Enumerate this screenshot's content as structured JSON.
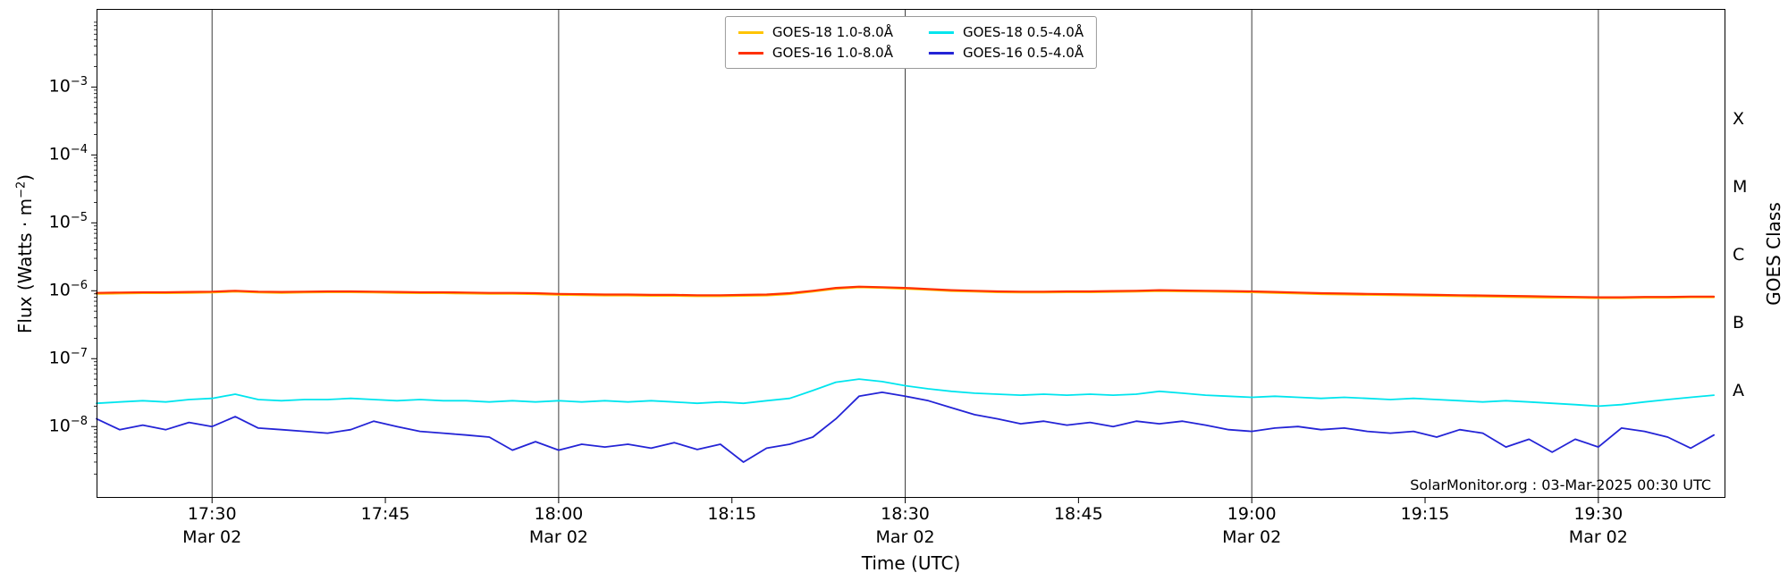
{
  "chart_data": {
    "type": "line",
    "title": "",
    "xlabel": "Time (UTC)",
    "ylabel": "Flux (Watts · m⁻²)",
    "ylabel_parts": {
      "pre": "Flux (Watts · m",
      "sup": "−2",
      "post": ")"
    },
    "ylabel_right": "GOES Class",
    "annotation": "SolarMonitor.org : 03-Mar-2025 00:30 UTC",
    "x_axis_date": "Mar 02",
    "scale": "log",
    "grid": "vertical lines at half-hour marks only",
    "legend_position": "upper center, 2 columns",
    "xlim_minutes": [
      1040,
      1181
    ],
    "ylim_log10": [
      -9.05,
      -1.85
    ],
    "x_start_minutes": 1040,
    "x_step_minutes": 2,
    "colors": {
      "grid": "#3c3c3c",
      "frame": "#000000",
      "background": "#ffffff"
    },
    "x_ticks": [
      {
        "minutes": 1050,
        "label": "17:30",
        "date": "Mar 02",
        "grid": true
      },
      {
        "minutes": 1065,
        "label": "17:45",
        "date": "",
        "grid": false
      },
      {
        "minutes": 1080,
        "label": "18:00",
        "date": "Mar 02",
        "grid": true
      },
      {
        "minutes": 1095,
        "label": "18:15",
        "date": "",
        "grid": false
      },
      {
        "minutes": 1110,
        "label": "18:30",
        "date": "Mar 02",
        "grid": true
      },
      {
        "minutes": 1125,
        "label": "18:45",
        "date": "",
        "grid": false
      },
      {
        "minutes": 1140,
        "label": "19:00",
        "date": "Mar 02",
        "grid": true
      },
      {
        "minutes": 1155,
        "label": "19:15",
        "date": "",
        "grid": false
      },
      {
        "minutes": 1170,
        "label": "19:30",
        "date": "Mar 02",
        "grid": true
      }
    ],
    "y_ticks": [
      {
        "log10": -3,
        "base": "10",
        "exp": "−3"
      },
      {
        "log10": -4,
        "base": "10",
        "exp": "−4"
      },
      {
        "log10": -5,
        "base": "10",
        "exp": "−5"
      },
      {
        "log10": -6,
        "base": "10",
        "exp": "−6"
      },
      {
        "log10": -7,
        "base": "10",
        "exp": "−7"
      },
      {
        "log10": -8,
        "base": "10",
        "exp": "−8"
      }
    ],
    "goes_classes": [
      {
        "label": "X",
        "log10": -3.5
      },
      {
        "label": "M",
        "log10": -4.5
      },
      {
        "label": "C",
        "log10": -5.5
      },
      {
        "label": "B",
        "log10": -6.5
      },
      {
        "label": "A",
        "log10": -7.5
      }
    ],
    "series": [
      {
        "name": "GOES-18 1.0-8.0Å",
        "color": "#ffc400",
        "line_width": 2,
        "values": [
          9e-07,
          9.1e-07,
          9.2e-07,
          9.2e-07,
          9.3e-07,
          9.4e-07,
          9.7e-07,
          9.4e-07,
          9.3e-07,
          9.4e-07,
          9.5e-07,
          9.5e-07,
          9.4e-07,
          9.3e-07,
          9.2e-07,
          9.2e-07,
          9.1e-07,
          9e-07,
          9e-07,
          8.9e-07,
          8.7e-07,
          8.6e-07,
          8.5e-07,
          8.5e-07,
          8.4e-07,
          8.4e-07,
          8.3e-07,
          8.3e-07,
          8.4e-07,
          8.5e-07,
          8.9e-07,
          9.7e-07,
          1.07e-06,
          1.12e-06,
          1.1e-06,
          1.07e-06,
          1.03e-06,
          9.9e-07,
          9.7e-07,
          9.5e-07,
          9.4e-07,
          9.4e-07,
          9.5e-07,
          9.5e-07,
          9.6e-07,
          9.7e-07,
          9.9e-07,
          9.8e-07,
          9.7e-07,
          9.6e-07,
          9.5e-07,
          9.3e-07,
          9.1e-07,
          8.9e-07,
          8.8e-07,
          8.7e-07,
          8.6e-07,
          8.5e-07,
          8.4e-07,
          8.3e-07,
          8.2e-07,
          8.1e-07,
          8e-07,
          7.9e-07,
          7.9e-07,
          7.8e-07,
          7.8e-07,
          7.9e-07,
          7.9e-07,
          8e-07,
          8e-07
        ]
      },
      {
        "name": "GOES-16 1.0-8.0Å",
        "color": "#ff3000",
        "line_width": 2.2,
        "values": [
          9.3e-07,
          9.4e-07,
          9.5e-07,
          9.5e-07,
          9.6e-07,
          9.7e-07,
          1e-06,
          9.7e-07,
          9.6e-07,
          9.7e-07,
          9.8e-07,
          9.8e-07,
          9.7e-07,
          9.6e-07,
          9.5e-07,
          9.5e-07,
          9.4e-07,
          9.3e-07,
          9.3e-07,
          9.2e-07,
          9e-07,
          8.9e-07,
          8.8e-07,
          8.8e-07,
          8.7e-07,
          8.7e-07,
          8.6e-07,
          8.6e-07,
          8.7e-07,
          8.8e-07,
          9.2e-07,
          1e-06,
          1.1e-06,
          1.15e-06,
          1.13e-06,
          1.1e-06,
          1.06e-06,
          1.02e-06,
          1e-06,
          9.8e-07,
          9.7e-07,
          9.7e-07,
          9.8e-07,
          9.8e-07,
          9.9e-07,
          1e-06,
          1.02e-06,
          1.01e-06,
          1e-06,
          9.9e-07,
          9.8e-07,
          9.6e-07,
          9.4e-07,
          9.2e-07,
          9.1e-07,
          9e-07,
          8.9e-07,
          8.8e-07,
          8.7e-07,
          8.6e-07,
          8.5e-07,
          8.4e-07,
          8.3e-07,
          8.2e-07,
          8.1e-07,
          8e-07,
          8e-07,
          8.1e-07,
          8.1e-07,
          8.2e-07,
          8.2e-07
        ]
      },
      {
        "name": "GOES-18 0.5-4.0Å",
        "color": "#00e5ee",
        "line_width": 1.8,
        "values": [
          2.2e-08,
          2.3e-08,
          2.4e-08,
          2.3e-08,
          2.5e-08,
          2.6e-08,
          3e-08,
          2.5e-08,
          2.4e-08,
          2.5e-08,
          2.5e-08,
          2.6e-08,
          2.5e-08,
          2.4e-08,
          2.5e-08,
          2.4e-08,
          2.4e-08,
          2.3e-08,
          2.4e-08,
          2.3e-08,
          2.4e-08,
          2.3e-08,
          2.4e-08,
          2.3e-08,
          2.4e-08,
          2.3e-08,
          2.2e-08,
          2.3e-08,
          2.2e-08,
          2.4e-08,
          2.6e-08,
          3.4e-08,
          4.5e-08,
          5e-08,
          4.6e-08,
          4e-08,
          3.6e-08,
          3.3e-08,
          3.1e-08,
          3e-08,
          2.9e-08,
          3e-08,
          2.9e-08,
          3e-08,
          2.9e-08,
          3e-08,
          3.3e-08,
          3.1e-08,
          2.9e-08,
          2.8e-08,
          2.7e-08,
          2.8e-08,
          2.7e-08,
          2.6e-08,
          2.7e-08,
          2.6e-08,
          2.5e-08,
          2.6e-08,
          2.5e-08,
          2.4e-08,
          2.3e-08,
          2.4e-08,
          2.3e-08,
          2.2e-08,
          2.1e-08,
          2e-08,
          2.1e-08,
          2.3e-08,
          2.5e-08,
          2.7e-08,
          2.9e-08
        ]
      },
      {
        "name": "GOES-16 0.5-4.0Å",
        "color": "#2424d6",
        "line_width": 1.8,
        "values": [
          1.3e-08,
          9e-09,
          1.05e-08,
          9e-09,
          1.15e-08,
          1e-08,
          1.4e-08,
          9.5e-09,
          9e-09,
          8.5e-09,
          8e-09,
          9e-09,
          1.2e-08,
          1e-08,
          8.5e-09,
          8e-09,
          7.5e-09,
          7e-09,
          4.5e-09,
          6e-09,
          4.5e-09,
          5.5e-09,
          5e-09,
          5.5e-09,
          4.8e-09,
          5.8e-09,
          4.6e-09,
          5.5e-09,
          3e-09,
          4.8e-09,
          5.5e-09,
          7e-09,
          1.3e-08,
          2.8e-08,
          3.2e-08,
          2.8e-08,
          2.4e-08,
          1.9e-08,
          1.5e-08,
          1.3e-08,
          1.1e-08,
          1.2e-08,
          1.05e-08,
          1.15e-08,
          1e-08,
          1.2e-08,
          1.1e-08,
          1.2e-08,
          1.05e-08,
          9e-09,
          8.5e-09,
          9.5e-09,
          1e-08,
          9e-09,
          9.5e-09,
          8.5e-09,
          8e-09,
          8.5e-09,
          7e-09,
          9e-09,
          8e-09,
          5e-09,
          6.5e-09,
          4.2e-09,
          6.5e-09,
          5e-09,
          9.5e-09,
          8.5e-09,
          7e-09,
          4.8e-09,
          7.5e-09
        ]
      }
    ]
  }
}
